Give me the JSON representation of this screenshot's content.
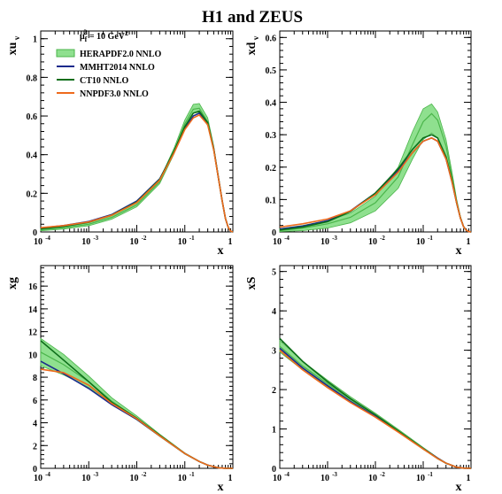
{
  "title": "H1 and ZEUS",
  "legend": {
    "scale_prefix": "μ",
    "scale_sub": "f",
    "scale_sup": "2",
    "scale_eq": " = 10 GeV",
    "scale_unit_sup": "2",
    "entries": [
      {
        "label": "HERAPDF2.0 NNLO",
        "color": "#4bb54b",
        "band_color": "#8fe08f",
        "style": "band"
      },
      {
        "label": "MMHT2014 NNLO",
        "color": "#1c2a8c",
        "style": "line"
      },
      {
        "label": "CT10 NNLO",
        "color": "#0d6e1a",
        "style": "line"
      },
      {
        "label": "NNPDF3.0 NNLO",
        "color": "#ee6a1c",
        "style": "line"
      }
    ]
  },
  "chart_data": [
    {
      "type": "line",
      "ylabel": "xu",
      "ylabel_sub": "v",
      "xlabel": "x",
      "xscale": "log",
      "xlim": [
        0.0001,
        1
      ],
      "ylim": [
        0,
        1.04
      ],
      "xticks": [
        {
          "base": "10",
          "exp": "-4"
        },
        {
          "base": "10",
          "exp": "-3"
        },
        {
          "base": "10",
          "exp": "-2"
        },
        {
          "base": "10",
          "exp": "-1"
        },
        {
          "base": "1",
          "exp": ""
        }
      ],
      "yticks": [
        "0",
        "0.2",
        "0.4",
        "0.6",
        "0.8",
        "1"
      ],
      "x": [
        0.0001,
        0.0003,
        0.001,
        0.003,
        0.01,
        0.03,
        0.06,
        0.1,
        0.15,
        0.2,
        0.3,
        0.4,
        0.5,
        0.6,
        0.7,
        0.8,
        0.9,
        1.0
      ],
      "series": [
        {
          "name": "HERAPDF2.0 NNLO",
          "values": [
            0.012,
            0.022,
            0.04,
            0.075,
            0.14,
            0.26,
            0.42,
            0.56,
            0.635,
            0.64,
            0.57,
            0.43,
            0.28,
            0.16,
            0.07,
            0.025,
            0.004,
            0.0
          ],
          "lower": [
            0.006,
            0.015,
            0.032,
            0.066,
            0.13,
            0.25,
            0.405,
            0.545,
            0.615,
            0.62,
            0.55,
            0.415,
            0.27,
            0.155,
            0.068,
            0.024,
            0.004,
            0.0
          ],
          "upper": [
            0.018,
            0.029,
            0.048,
            0.084,
            0.15,
            0.27,
            0.435,
            0.58,
            0.66,
            0.665,
            0.59,
            0.445,
            0.29,
            0.167,
            0.073,
            0.026,
            0.004,
            0.0
          ]
        },
        {
          "name": "MMHT2014 NNLO",
          "values": [
            0.02,
            0.033,
            0.054,
            0.09,
            0.16,
            0.275,
            0.415,
            0.535,
            0.6,
            0.615,
            0.56,
            0.43,
            0.28,
            0.16,
            0.07,
            0.025,
            0.004,
            0.0
          ]
        },
        {
          "name": "CT10 NNLO",
          "values": [
            0.016,
            0.029,
            0.05,
            0.087,
            0.155,
            0.272,
            0.42,
            0.545,
            0.615,
            0.625,
            0.565,
            0.43,
            0.28,
            0.16,
            0.07,
            0.025,
            0.004,
            0.0
          ]
        },
        {
          "name": "NNPDF3.0 NNLO",
          "values": [
            0.022,
            0.033,
            0.052,
            0.086,
            0.152,
            0.268,
            0.41,
            0.53,
            0.59,
            0.605,
            0.555,
            0.425,
            0.278,
            0.16,
            0.07,
            0.025,
            0.004,
            0.0
          ]
        }
      ]
    },
    {
      "type": "line",
      "ylabel": "xd",
      "ylabel_sub": "v",
      "xlabel": "x",
      "xscale": "log",
      "xlim": [
        0.0001,
        1
      ],
      "ylim": [
        0,
        0.62
      ],
      "xticks": [
        {
          "base": "10",
          "exp": "-4"
        },
        {
          "base": "10",
          "exp": "-3"
        },
        {
          "base": "10",
          "exp": "-2"
        },
        {
          "base": "10",
          "exp": "-1"
        },
        {
          "base": "1",
          "exp": ""
        }
      ],
      "yticks": [
        "0",
        "0.1",
        "0.2",
        "0.3",
        "0.4",
        "0.5",
        "0.6"
      ],
      "x": [
        0.0001,
        0.0003,
        0.001,
        0.003,
        0.01,
        0.03,
        0.06,
        0.1,
        0.15,
        0.2,
        0.3,
        0.4,
        0.5,
        0.6,
        0.7,
        0.8,
        0.9,
        1.0
      ],
      "series": [
        {
          "name": "HERAPDF2.0 NNLO",
          "values": [
            0.004,
            0.012,
            0.025,
            0.045,
            0.09,
            0.17,
            0.27,
            0.34,
            0.365,
            0.345,
            0.265,
            0.17,
            0.095,
            0.045,
            0.017,
            0.005,
            0.001,
            0.0
          ],
          "lower": [
            0.001,
            0.004,
            0.012,
            0.028,
            0.065,
            0.135,
            0.225,
            0.285,
            0.305,
            0.29,
            0.225,
            0.15,
            0.085,
            0.04,
            0.015,
            0.004,
            0.001,
            0.0
          ],
          "upper": [
            0.01,
            0.02,
            0.035,
            0.058,
            0.11,
            0.2,
            0.31,
            0.38,
            0.395,
            0.37,
            0.285,
            0.185,
            0.102,
            0.048,
            0.018,
            0.005,
            0.001,
            0.0
          ]
        },
        {
          "name": "MMHT2014 NNLO",
          "values": [
            0.009,
            0.018,
            0.035,
            0.065,
            0.12,
            0.19,
            0.245,
            0.28,
            0.29,
            0.28,
            0.225,
            0.155,
            0.09,
            0.043,
            0.016,
            0.005,
            0.001,
            0.0
          ]
        },
        {
          "name": "CT10 NNLO",
          "values": [
            0.006,
            0.015,
            0.032,
            0.063,
            0.12,
            0.195,
            0.255,
            0.29,
            0.3,
            0.29,
            0.232,
            0.16,
            0.092,
            0.044,
            0.016,
            0.005,
            0.001,
            0.0
          ]
        },
        {
          "name": "NNPDF3.0 NNLO",
          "values": [
            0.015,
            0.025,
            0.04,
            0.065,
            0.115,
            0.185,
            0.245,
            0.28,
            0.29,
            0.28,
            0.225,
            0.155,
            0.09,
            0.043,
            0.016,
            0.005,
            0.001,
            0.0
          ]
        }
      ]
    },
    {
      "type": "line",
      "ylabel": "xg",
      "ylabel_sub": "",
      "xlabel": "x",
      "xscale": "log",
      "xlim": [
        0.0001,
        1
      ],
      "ylim": [
        0,
        17.8
      ],
      "xticks": [
        {
          "base": "10",
          "exp": "-4"
        },
        {
          "base": "10",
          "exp": "-3"
        },
        {
          "base": "10",
          "exp": "-2"
        },
        {
          "base": "10",
          "exp": "-1"
        },
        {
          "base": "1",
          "exp": ""
        }
      ],
      "yticks": [
        "0",
        "2",
        "4",
        "6",
        "8",
        "10",
        "12",
        "14",
        "16"
      ],
      "x": [
        0.0001,
        0.0003,
        0.001,
        0.003,
        0.01,
        0.03,
        0.1,
        0.2,
        0.3,
        0.5,
        0.7,
        1.0
      ],
      "series": [
        {
          "name": "HERAPDF2.0 NNLO",
          "values": [
            10.2,
            9.1,
            7.6,
            5.9,
            4.4,
            2.9,
            1.3,
            0.6,
            0.28,
            0.05,
            0.01,
            0.0
          ],
          "lower": [
            9.0,
            8.2,
            7.1,
            5.6,
            4.25,
            2.8,
            1.25,
            0.57,
            0.26,
            0.045,
            0.01,
            0.0
          ],
          "upper": [
            11.4,
            10.0,
            8.1,
            6.2,
            4.6,
            3.0,
            1.35,
            0.63,
            0.3,
            0.055,
            0.01,
            0.0
          ]
        },
        {
          "name": "MMHT2014 NNLO",
          "values": [
            9.4,
            8.3,
            7.0,
            5.6,
            4.3,
            2.85,
            1.3,
            0.6,
            0.28,
            0.05,
            0.01,
            0.0
          ]
        },
        {
          "name": "CT10 NNLO",
          "values": [
            11.2,
            9.5,
            7.6,
            5.8,
            4.4,
            2.9,
            1.3,
            0.6,
            0.28,
            0.05,
            0.01,
            0.0
          ]
        },
        {
          "name": "NNPDF3.0 NNLO",
          "values": [
            8.7,
            8.4,
            7.3,
            5.7,
            4.35,
            2.85,
            1.3,
            0.6,
            0.28,
            0.05,
            0.01,
            0.0
          ]
        }
      ]
    },
    {
      "type": "line",
      "ylabel": "xS",
      "ylabel_sub": "",
      "xlabel": "x",
      "xscale": "log",
      "xlim": [
        0.0001,
        1
      ],
      "ylim": [
        0,
        5.15
      ],
      "xticks": [
        {
          "base": "10",
          "exp": "-4"
        },
        {
          "base": "10",
          "exp": "-3"
        },
        {
          "base": "10",
          "exp": "-2"
        },
        {
          "base": "10",
          "exp": "-1"
        },
        {
          "base": "1",
          "exp": ""
        }
      ],
      "yticks": [
        "0",
        "1",
        "2",
        "3",
        "4",
        "5"
      ],
      "x": [
        0.0001,
        0.0003,
        0.001,
        0.003,
        0.01,
        0.03,
        0.1,
        0.2,
        0.3,
        0.5,
        0.7,
        1.0
      ],
      "series": [
        {
          "name": "HERAPDF2.0 NNLO",
          "values": [
            3.1,
            2.6,
            2.15,
            1.75,
            1.35,
            0.95,
            0.5,
            0.25,
            0.13,
            0.03,
            0.005,
            0.0
          ],
          "lower": [
            2.95,
            2.5,
            2.08,
            1.7,
            1.31,
            0.92,
            0.48,
            0.24,
            0.12,
            0.028,
            0.005,
            0.0
          ],
          "upper": [
            3.25,
            2.72,
            2.24,
            1.82,
            1.4,
            0.99,
            0.53,
            0.27,
            0.14,
            0.033,
            0.005,
            0.0
          ]
        },
        {
          "name": "MMHT2014 NNLO",
          "values": [
            3.05,
            2.55,
            2.1,
            1.7,
            1.32,
            0.93,
            0.5,
            0.26,
            0.13,
            0.03,
            0.005,
            0.0
          ]
        },
        {
          "name": "CT10 NNLO",
          "values": [
            3.3,
            2.72,
            2.2,
            1.77,
            1.36,
            0.95,
            0.5,
            0.25,
            0.13,
            0.03,
            0.005,
            0.0
          ]
        },
        {
          "name": "NNPDF3.0 NNLO",
          "values": [
            3.0,
            2.5,
            2.05,
            1.67,
            1.3,
            0.92,
            0.49,
            0.25,
            0.13,
            0.03,
            0.005,
            0.0
          ]
        }
      ]
    }
  ]
}
